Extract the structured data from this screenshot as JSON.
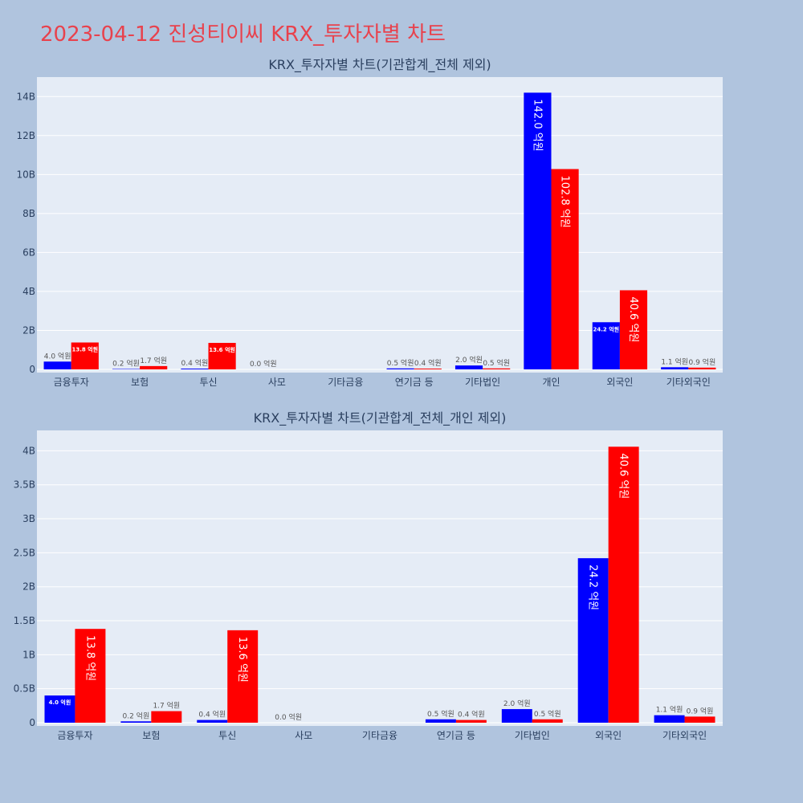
{
  "title": "2023-04-12 진성티이씨 KRX_투자자별 차트",
  "colors": {
    "background": "#b0c4de",
    "plot_bg": "#e5ecf6",
    "title": "#e8424d",
    "sell": "#0000ff",
    "buy": "#ff0000",
    "text": "#2a3f5f"
  },
  "chart_data": [
    {
      "type": "bar",
      "title": "KRX_투자자별 차트(기관합계_전체 제외)",
      "categories": [
        "금융투자",
        "보험",
        "투신",
        "사모",
        "기타금융",
        "연기금 등",
        "기타법인",
        "개인",
        "외국인",
        "기타외국인"
      ],
      "series": [
        {
          "values": [
            400000000,
            20000000,
            40000000,
            0,
            0,
            50000000,
            200000000,
            14200000000,
            2420000000,
            110000000
          ],
          "labels": [
            "4.0 억원",
            "0.2 억원",
            "0.4 억원",
            "0.0 억원",
            "",
            "0.5 억원",
            "2.0 억원",
            "142.0 억원",
            "24.2 억원",
            "1.1 억원"
          ]
        },
        {
          "values": [
            1380000000,
            170000000,
            1360000000,
            0,
            0,
            40000000,
            50000000,
            10280000000,
            4060000000,
            90000000
          ],
          "labels": [
            "13.8 억원",
            "1.7 억원",
            "13.6 억원",
            "",
            "",
            "0.4 억원",
            "0.5 억원",
            "102.8 억원",
            "40.6 억원",
            "0.9 억원"
          ]
        }
      ],
      "ylim": [
        0,
        15000000000
      ],
      "yticks": [
        0,
        2000000000,
        4000000000,
        6000000000,
        8000000000,
        10000000000,
        12000000000,
        14000000000
      ],
      "ytick_labels": [
        "0",
        "2B",
        "4B",
        "6B",
        "8B",
        "10B",
        "12B",
        "14B"
      ],
      "grid": true
    },
    {
      "type": "bar",
      "title": "KRX_투자자별 차트(기관합계_전체_개인 제외)",
      "categories": [
        "금융투자",
        "보험",
        "투신",
        "사모",
        "기타금융",
        "연기금 등",
        "기타법인",
        "외국인",
        "기타외국인"
      ],
      "series": [
        {
          "values": [
            400000000,
            20000000,
            40000000,
            0,
            0,
            50000000,
            200000000,
            2420000000,
            110000000
          ],
          "labels": [
            "4.0 억원",
            "0.2 억원",
            "0.4 억원",
            "0.0 억원",
            "",
            "0.5 억원",
            "2.0 억원",
            "24.2 억원",
            "1.1 억원"
          ]
        },
        {
          "values": [
            1380000000,
            170000000,
            1360000000,
            0,
            0,
            40000000,
            50000000,
            4060000000,
            90000000
          ],
          "labels": [
            "13.8 억원",
            "1.7 억원",
            "13.6 억원",
            "",
            "",
            "0.4 억원",
            "0.5 억원",
            "40.6 억원",
            "0.9 억원"
          ]
        }
      ],
      "ylim": [
        0,
        4300000000
      ],
      "yticks": [
        0,
        500000000,
        1000000000,
        1500000000,
        2000000000,
        2500000000,
        3000000000,
        3500000000,
        4000000000
      ],
      "ytick_labels": [
        "0",
        "0.5B",
        "1B",
        "1.5B",
        "2B",
        "2.5B",
        "3B",
        "3.5B",
        "4B"
      ],
      "grid": true
    }
  ]
}
